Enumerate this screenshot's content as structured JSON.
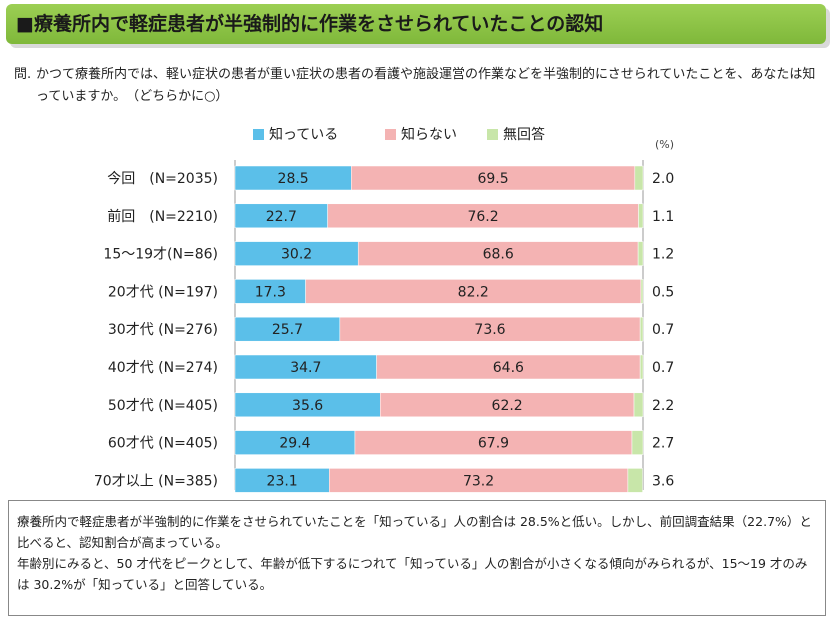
{
  "header": {
    "title": "■療養所内で軽症患者が半強制的に作業をさせられていたことの認知"
  },
  "question": {
    "label": "問.",
    "text": "かつて療養所内では、軽い症状の患者が重い症状の患者の看護や施設運営の作業などを半強制的にさせられていたことを、あなたは知っていますか。　（どちらかに○）"
  },
  "chart_data": {
    "type": "bar",
    "orientation": "horizontal",
    "stacked": true,
    "percent_label": "(%)",
    "categories": [
      "今回　(N=2035)",
      "前回　(N=2210)",
      "15～19才(N=86)",
      "20才代 (N=197)",
      "30才代 (N=276)",
      "40才代 (N=274)",
      "50才代 (N=405)",
      "60才代 (N=405)",
      "70才以上 (N=385)"
    ],
    "series": [
      {
        "name": "知っている",
        "color": "#5bbfe9",
        "values": [
          28.5,
          22.7,
          30.2,
          17.3,
          25.7,
          34.7,
          35.6,
          29.4,
          23.1
        ]
      },
      {
        "name": "知らない",
        "color": "#f4b3b3",
        "values": [
          69.5,
          76.2,
          68.6,
          82.2,
          73.6,
          64.6,
          62.2,
          67.9,
          73.2
        ]
      },
      {
        "name": "無回答",
        "color": "#c8e6a9",
        "values": [
          2.0,
          1.1,
          1.2,
          0.5,
          0.7,
          0.7,
          2.2,
          2.7,
          3.6
        ]
      }
    ],
    "xlim": [
      0,
      100
    ],
    "legend_position": "top"
  },
  "summary": {
    "line1": "療養所内で軽症患者が半強制的に作業をさせられていたことを「知っている」人の割合は 28.5%と低い。しかし、前回調査結果（22.7%）と比べると、認知割合が高まっている。",
    "line2": "年齢別にみると、50 才代をピークとして、年齢が低下するにつれて「知っている」人の割合が小さくなる傾向がみられるが、15～19 才のみは 30.2%が「知っている」と回答している。"
  }
}
